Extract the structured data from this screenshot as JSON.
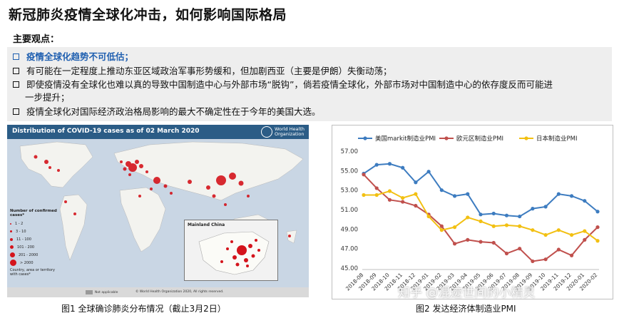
{
  "title": "新冠肺炎疫情全球化冲击，如何影响国际格局",
  "subheading": "主要观点：",
  "points": [
    {
      "text": "疫情全球化趋势不可低估；",
      "highlight": true
    },
    {
      "text": "有可能在一定程度上推动东亚区域政治军事形势缓和，但加剧西亚（主要是伊朗）失衡动荡；",
      "highlight": false
    },
    {
      "text": "即使疫情没有全球化也难以真的导致中国制造中心与外部市场“脱钩”，倘若疫情全球化，外部市场对中国制造中心的依存度反而可能进",
      "highlight": false
    },
    {
      "text": "一步提升；",
      "highlight": false
    },
    {
      "text": "疫情全球化对国际经济政治格局影响的最大不确定性在于今年的美国大选。",
      "highlight": false
    }
  ],
  "map": {
    "title": "Distribution of COVID-19  cases as of 02 March 2020",
    "who_line1": "World Health",
    "who_line2": "Organization",
    "legend_title": "Number of confirmed cases*",
    "legend_items": [
      "1 - 2",
      "3 - 10",
      "11 - 100",
      "101 - 200",
      "201 - 2000",
      "> 2000"
    ],
    "legend_note": "Country, area or territory with cases*",
    "inset_title": "Mainland China",
    "not_applicable": "Not applicable",
    "footer": "© World Health Organization 2020, All rights reserved."
  },
  "captions": {
    "map": "图1 全球确诊肺炎分布情况（截止3月2日）",
    "chart": "图2 发达经济体制造业PMI"
  },
  "watermark": "知乎 @混迹世间的小精灵",
  "chart_data": {
    "type": "line",
    "title": "",
    "xlabel": "",
    "ylabel": "",
    "ylim": [
      45,
      57
    ],
    "yticks": [
      "57.00",
      "55.00",
      "53.00",
      "51.00",
      "49.00",
      "47.00",
      "45.00"
    ],
    "categories": [
      "2018-08",
      "2018-09",
      "2018-10",
      "2018-11",
      "2018-12",
      "2019-01",
      "2019-02",
      "2019-03",
      "2019-04",
      "2019-05",
      "2019-06",
      "2019-07",
      "2019-08",
      "2019-09",
      "2019-10",
      "2019-11",
      "2019-12",
      "2020-01",
      "2020-02"
    ],
    "xticks": [
      "2018-08",
      "2018-09",
      "2018-10",
      "2018-11",
      "2018-12",
      "2019-01",
      "2019-02",
      "2019-03",
      "2019-04",
      "2019-05",
      "2019-06",
      "2019-07",
      "2019-08",
      "2019-09",
      "2019-10",
      "2019-11",
      "2019-12",
      "2020-01",
      "2020-02"
    ],
    "series": [
      {
        "name": "美国markit制造业PMI",
        "color": "#3d7cc0",
        "values": [
          54.7,
          55.6,
          55.7,
          55.3,
          53.8,
          54.9,
          53.0,
          52.4,
          52.6,
          50.5,
          50.6,
          50.4,
          50.3,
          51.1,
          51.3,
          52.6,
          52.4,
          51.9,
          50.8
        ]
      },
      {
        "name": "欧元区制造业PMI",
        "color": "#c0504d",
        "values": [
          54.6,
          53.2,
          52.0,
          51.8,
          51.4,
          50.5,
          49.3,
          47.5,
          47.9,
          47.7,
          47.6,
          46.5,
          47.0,
          45.7,
          45.9,
          46.9,
          46.3,
          47.9,
          49.2
        ]
      },
      {
        "name": "日本制造业PMI",
        "color": "#f2c012",
        "values": [
          52.5,
          52.5,
          52.9,
          52.2,
          52.6,
          50.3,
          48.9,
          49.2,
          50.2,
          49.8,
          49.3,
          49.4,
          49.3,
          48.9,
          48.4,
          48.9,
          48.4,
          48.8,
          47.8
        ]
      }
    ],
    "legend": "top",
    "grid": false
  }
}
